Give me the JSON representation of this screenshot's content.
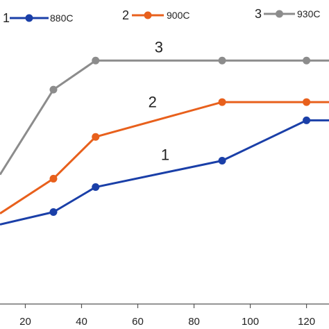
{
  "chart_data": {
    "type": "line",
    "x_ticks": [
      20,
      40,
      60,
      80,
      100,
      120
    ],
    "xlim": [
      11,
      128
    ],
    "ylim": [
      0,
      100
    ],
    "grid": false,
    "legend_position": "top",
    "series": [
      {
        "id": "1",
        "name": "880C",
        "tag": "1",
        "color": "#1a3fa8",
        "x": [
          11,
          30,
          45,
          90,
          120,
          128
        ],
        "y": [
          27.4,
          31.7,
          40.3,
          49.4,
          63.3,
          63.3
        ]
      },
      {
        "id": "2",
        "name": "900C",
        "tag": "2",
        "color": "#e8601c",
        "x": [
          11,
          30,
          45,
          90,
          120,
          128
        ],
        "y": [
          31.2,
          43.2,
          57.6,
          69.6,
          69.6,
          69.6
        ]
      },
      {
        "id": "3",
        "name": "930C",
        "tag": "3",
        "color": "#8c8c8c",
        "x": [
          11,
          30,
          45,
          90,
          120,
          128
        ],
        "y": [
          44.6,
          73.9,
          83.9,
          83.9,
          83.9,
          83.9
        ]
      }
    ]
  }
}
